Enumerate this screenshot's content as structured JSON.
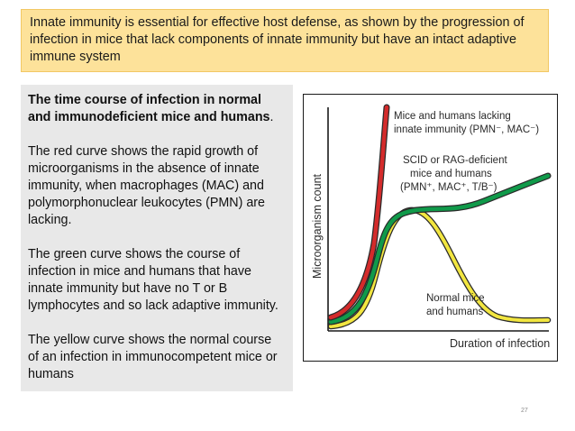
{
  "banner": {
    "text": "Innate immunity is essential for effective host defense, as shown by the progression of infection in mice that lack components of innate immunity but have an intact adaptive immune system"
  },
  "text_panel": {
    "heading": "The time course of infection in normal and immunodeficient mice and humans",
    "heading_suffix": ".",
    "para_red": "The red curve shows the rapid growth of microorganisms in the absence of innate immunity, when macrophages (MAC) and polymorphonuclear leukocytes (PMN) are lacking.",
    "para_green": "The green curve shows the course of infection in mice and humans that have innate immunity but have no T or B lymphocytes and so lack adaptive immunity.",
    "para_yellow": "The yellow curve shows the normal course of an infection in immunocompetent mice or humans"
  },
  "figure": {
    "y_axis_label": "Microorganism count",
    "x_axis_label": "Duration of infection",
    "label_red_line1": "Mice and humans lacking",
    "label_red_line2": "innate immunity (PMN⁻, MAC⁻)",
    "label_green_line1": "SCID or RAG-deficient",
    "label_green_line2": "mice and humans",
    "label_green_line3": "(PMN⁺, MAC⁺, T/B⁻)",
    "label_yellow_line1": "Normal mice",
    "label_yellow_line2": "and humans",
    "colors": {
      "red": "#d42b2b",
      "green": "#109a4a",
      "yellow": "#f2e640",
      "curve_outline": "#2a2a2a"
    }
  },
  "footer": {
    "slide_number": "27"
  }
}
